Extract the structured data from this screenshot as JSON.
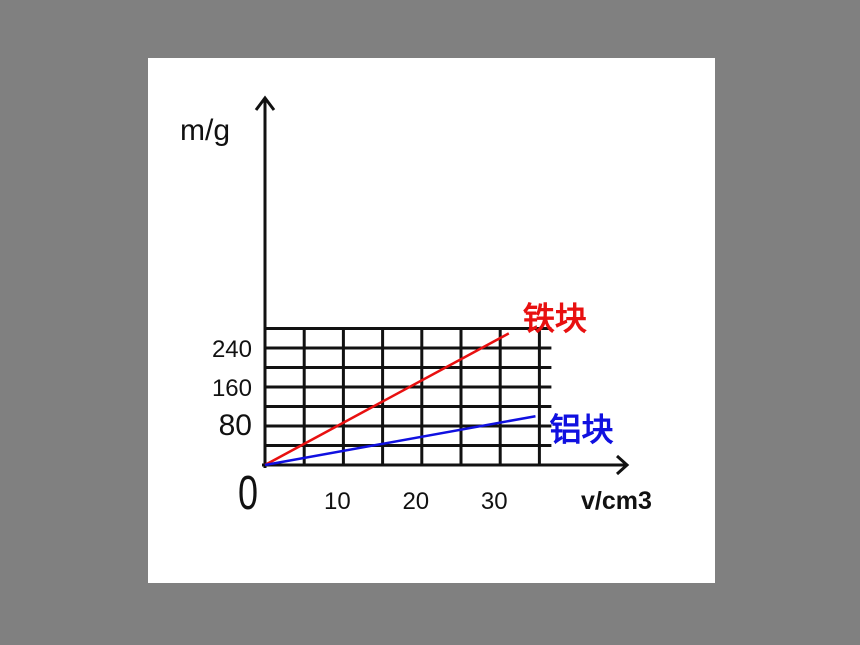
{
  "chart_data": {
    "type": "line",
    "title": "",
    "ylabel": "m/g",
    "xlabel": "v/cm3",
    "origin_label": "0",
    "x_ticks": [
      10,
      20,
      30
    ],
    "y_ticks": [
      80,
      160,
      240
    ],
    "xlim": [
      0,
      35
    ],
    "ylim": [
      0,
      280
    ],
    "grid": true,
    "series": [
      {
        "name": "铁块",
        "color": "#e81010",
        "x": [
          0,
          31.1
        ],
        "y": [
          0,
          270
        ]
      },
      {
        "name": "铝块",
        "color": "#1010e0",
        "x": [
          0,
          34.5
        ],
        "y": [
          0,
          100
        ]
      }
    ]
  }
}
